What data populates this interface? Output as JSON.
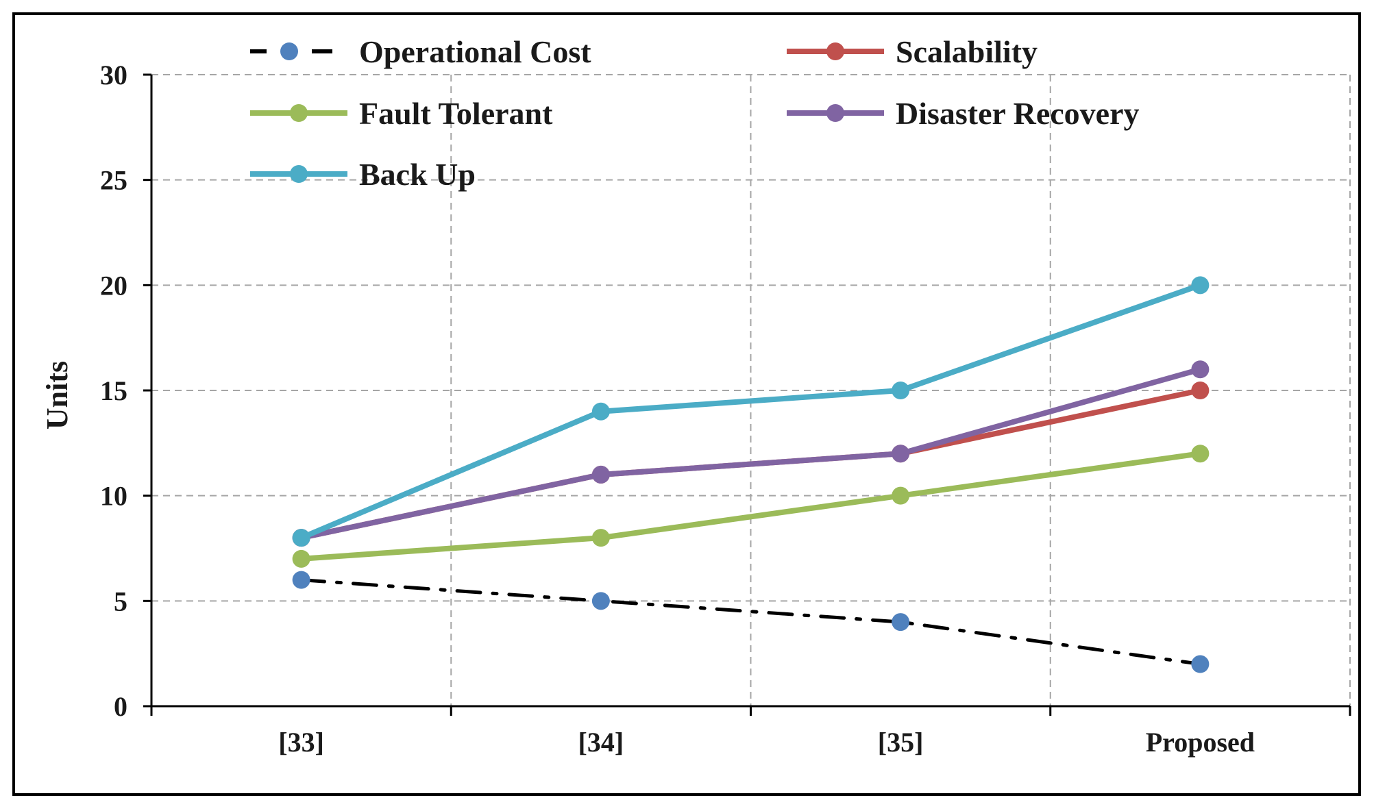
{
  "chart_data": {
    "type": "line",
    "title": "",
    "xlabel": "",
    "ylabel": "Units",
    "categories": [
      "[33]",
      "[34]",
      "[35]",
      "Proposed"
    ],
    "ylim": [
      0,
      30
    ],
    "yticks": [
      "0",
      "5",
      "10",
      "15",
      "20",
      "25",
      "30"
    ],
    "grid": true,
    "legend_position": "top",
    "series": [
      {
        "name": "Operational Cost",
        "values": [
          6,
          5,
          4,
          2
        ],
        "color": "#4f81bd",
        "line_color": "#000000",
        "style": "dashdot"
      },
      {
        "name": "Scalability",
        "values": [
          8,
          11,
          12,
          15
        ],
        "color": "#c0504d",
        "style": "solid"
      },
      {
        "name": "Fault Tolerant",
        "values": [
          7,
          8,
          10,
          12
        ],
        "color": "#9bbb59",
        "style": "solid"
      },
      {
        "name": "Disaster Recovery",
        "values": [
          8,
          11,
          12,
          16
        ],
        "color": "#8064a2",
        "style": "solid"
      },
      {
        "name": "Back Up",
        "values": [
          8,
          14,
          15,
          20
        ],
        "color": "#4bacc6",
        "style": "solid"
      }
    ]
  }
}
